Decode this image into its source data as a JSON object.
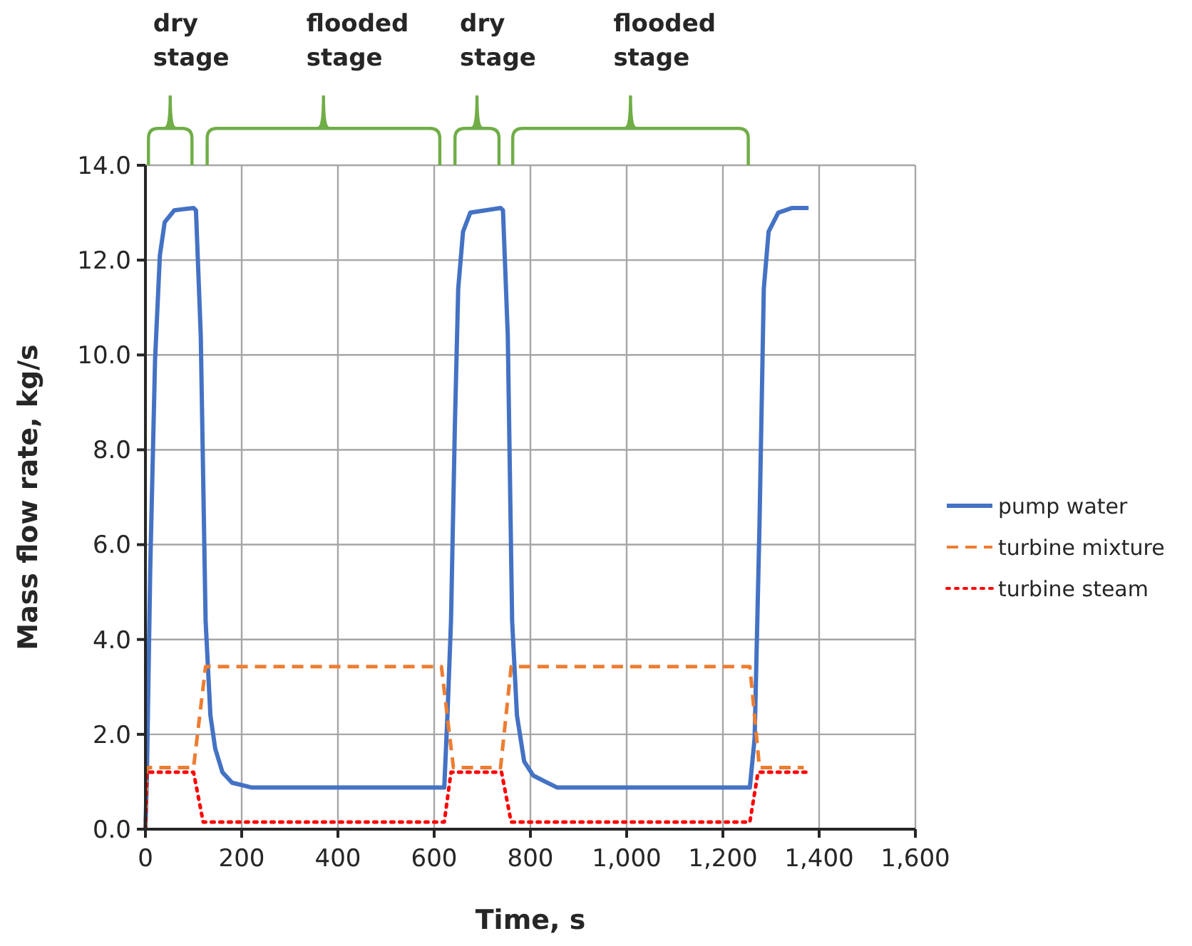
{
  "chart_data": {
    "type": "line",
    "xlabel": "Time, s",
    "ylabel": "Mass flow rate, kg/s",
    "xlim": [
      0,
      1600
    ],
    "xticks": [
      0,
      200,
      400,
      600,
      800,
      {
        "value": 1000,
        "label": "1,000"
      },
      {
        "value": 1200,
        "label": "1,200"
      },
      {
        "value": 1400,
        "label": "1,400"
      },
      {
        "value": 1600,
        "label": "1,600"
      }
    ],
    "ylim": [
      0,
      14
    ],
    "yticks": [
      {
        "value": 0,
        "label": "0.0"
      },
      {
        "value": 2,
        "label": "2.0"
      },
      {
        "value": 4,
        "label": "4.0"
      },
      {
        "value": 6,
        "label": "6.0"
      },
      {
        "value": 8,
        "label": "8.0"
      },
      {
        "value": 10,
        "label": "10.0"
      },
      {
        "value": 12,
        "label": "12.0"
      },
      {
        "value": 14,
        "label": "14.0"
      }
    ],
    "grid": true,
    "legend": "right",
    "marker": "none",
    "annotations": [
      "dry stage",
      "flooded stage",
      "dry stage",
      "flooded stage"
    ],
    "series": [
      {
        "name": "pump water",
        "color": "#4472c4",
        "line_style": "solid",
        "x": [
          0,
          3,
          10,
          20,
          30,
          40,
          60,
          100,
          105,
          115,
          125,
          135,
          145,
          160,
          180,
          220,
          621,
          628,
          635,
          643,
          650,
          660,
          675,
          738,
          743,
          753,
          762,
          772,
          787,
          806,
          855,
          1256,
          1266,
          1276,
          1285,
          1295,
          1315,
          1344,
          1378
        ],
        "values": [
          0,
          1.1,
          5.5,
          9.9,
          12.1,
          12.8,
          13.05,
          13.1,
          13.05,
          10.4,
          4.4,
          2.4,
          1.7,
          1.2,
          0.98,
          0.88,
          0.88,
          2.5,
          4.4,
          8.5,
          11.4,
          12.6,
          13.0,
          13.1,
          13.05,
          10.4,
          4.4,
          2.4,
          1.43,
          1.13,
          0.88,
          0.88,
          1.93,
          6.4,
          11.4,
          12.6,
          13.0,
          13.1,
          13.1
        ]
      },
      {
        "name": "turbine mixture",
        "color": "#ed7d31",
        "line_style": "dashed",
        "x": [
          0,
          3,
          100,
          125,
          615,
          640,
          738,
          760,
          1256,
          1276,
          1368
        ],
        "values": [
          0,
          1.3,
          1.3,
          3.43,
          3.43,
          1.3,
          1.3,
          3.43,
          3.43,
          1.3,
          1.3
        ]
      },
      {
        "name": "turbine steam",
        "color": "#ff0000",
        "line_style": "dotted",
        "x": [
          0,
          3,
          100,
          120,
          621,
          635,
          740,
          760,
          1256,
          1273,
          1373
        ],
        "values": [
          0,
          1.2,
          1.2,
          0.15,
          0.15,
          1.2,
          1.2,
          0.15,
          0.15,
          1.2,
          1.2
        ]
      }
    ]
  }
}
